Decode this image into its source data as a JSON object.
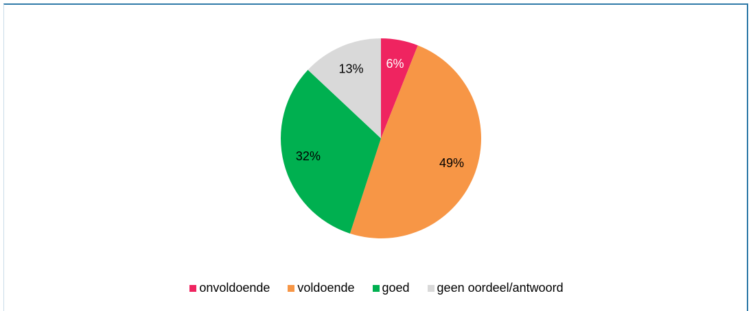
{
  "chart_data": {
    "type": "pie",
    "categories": [
      "onvoldoende",
      "voldoende",
      "goed",
      "geen oordeel/antwoord"
    ],
    "values": [
      6,
      49,
      32,
      13
    ],
    "value_labels": [
      "6%",
      "49%",
      "32%",
      "13%"
    ],
    "colors": [
      "#ef2460",
      "#f79646",
      "#00b050",
      "#d9d9d9"
    ],
    "label_colors": [
      "#ffffff",
      "#000000",
      "#000000",
      "#000000"
    ]
  }
}
